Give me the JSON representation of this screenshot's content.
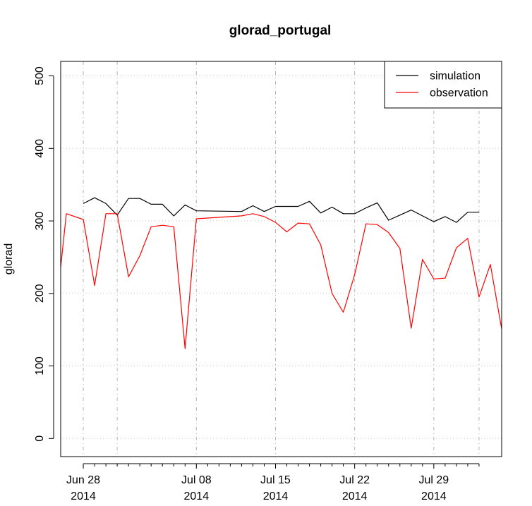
{
  "chart_data": {
    "type": "line",
    "title": "glorad_portugal",
    "xlabel": "",
    "ylabel": "glorad",
    "ylim": [
      -25,
      520
    ],
    "xlim": [
      0,
      39
    ],
    "y_ticks": [
      0,
      100,
      200,
      300,
      400,
      500
    ],
    "x_ticks": [
      {
        "day": 2,
        "top": "Jun 28",
        "bottom": "2014"
      },
      {
        "day": 12,
        "top": "Jul 08",
        "bottom": "2014"
      },
      {
        "day": 19,
        "top": "Jul 15",
        "bottom": "2014"
      },
      {
        "day": 26,
        "top": "Jul 22",
        "bottom": "2014"
      },
      {
        "day": 33,
        "top": "Jul 29",
        "bottom": "2014"
      }
    ],
    "minor_tick_days": [
      3,
      4,
      5,
      6,
      7,
      8,
      9,
      10,
      11,
      13,
      14,
      15,
      16,
      17,
      18,
      20,
      21,
      22,
      23,
      24,
      25,
      27,
      28,
      29,
      30,
      31,
      32,
      34,
      35,
      36,
      37
    ],
    "vgrid_days": [
      2,
      5,
      12,
      19,
      26,
      33,
      37
    ],
    "grid": true,
    "legend": {
      "position": "top-right",
      "entries": [
        {
          "label": "simulation",
          "color": "#000000"
        },
        {
          "label": "observation",
          "color": "#ff0000"
        }
      ]
    },
    "series": [
      {
        "name": "simulation",
        "color": "#000000",
        "x": [
          2,
          3,
          4,
          5,
          6,
          7,
          8,
          9,
          10,
          11,
          12,
          16,
          17,
          18,
          19,
          20,
          21,
          22,
          23,
          24,
          25,
          26,
          27,
          28,
          29,
          30,
          31,
          32,
          33,
          34,
          35,
          36,
          37
        ],
        "values": [
          324,
          332,
          324,
          308,
          331,
          331,
          323,
          323,
          307,
          322,
          314,
          313,
          321,
          313,
          320,
          320,
          320,
          327,
          311,
          319,
          310,
          310,
          318,
          325,
          301,
          308,
          315,
          307,
          299,
          306,
          298,
          312,
          312
        ]
      },
      {
        "name": "observation",
        "color": "#ff0000",
        "x": [
          0,
          0.5,
          2,
          3,
          4,
          5,
          6,
          7,
          8,
          9,
          10,
          11,
          12,
          16,
          17,
          18,
          19,
          20,
          21,
          22,
          23,
          24,
          25,
          26,
          27,
          28,
          29,
          30,
          31,
          32,
          33,
          34,
          35,
          36,
          37,
          38,
          39
        ],
        "values": [
          236,
          310,
          302,
          211,
          310,
          310,
          223,
          252,
          292,
          294,
          292,
          124,
          303,
          307,
          310,
          306,
          298,
          285,
          297,
          296,
          267,
          200,
          174,
          226,
          296,
          295,
          284,
          262,
          152,
          247,
          220,
          221,
          263,
          276,
          195,
          240,
          151
        ]
      }
    ]
  }
}
